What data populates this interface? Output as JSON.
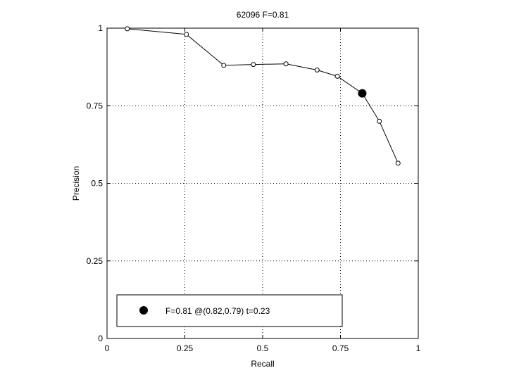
{
  "chart_data": {
    "type": "line",
    "title": "62096 F=0.81",
    "xlabel": "Recall",
    "ylabel": "Precision",
    "xlim": [
      0,
      1
    ],
    "ylim": [
      0,
      1
    ],
    "grid": true,
    "x_ticks": [
      0,
      0.25,
      0.5,
      0.75,
      1
    ],
    "x_tick_labels": [
      "0",
      "0.25",
      "0.5",
      "0.75",
      "1"
    ],
    "y_ticks": [
      0,
      0.25,
      0.5,
      0.75,
      1
    ],
    "y_tick_labels": [
      "0",
      "0.25",
      "0.5",
      "0.75",
      "1"
    ],
    "series": [
      {
        "x": [
          0.065,
          0.255,
          0.375,
          0.47,
          0.575,
          0.675,
          0.74,
          0.82,
          0.875,
          0.935
        ],
        "y": [
          0.998,
          0.98,
          0.88,
          0.883,
          0.885,
          0.865,
          0.845,
          0.79,
          0.7,
          0.565
        ]
      }
    ],
    "highlight_point": {
      "x": 0.82,
      "y": 0.79
    },
    "legend": {
      "position": "bottom-left",
      "text": "F=0.81 @(0.82,0.79) t=0.23"
    }
  }
}
